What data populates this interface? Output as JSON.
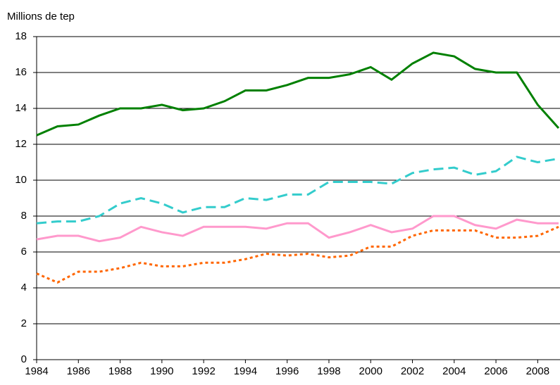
{
  "chart_data": {
    "type": "line",
    "ylabel": "Millions de tep",
    "x": [
      1984,
      1985,
      1986,
      1987,
      1988,
      1989,
      1990,
      1991,
      1992,
      1993,
      1994,
      1995,
      1996,
      1997,
      1998,
      1999,
      2000,
      2001,
      2002,
      2003,
      2004,
      2005,
      2006,
      2007,
      2008,
      2009
    ],
    "series": [
      {
        "color": "#008000",
        "dash": "solid",
        "values": [
          12.5,
          13.0,
          13.1,
          13.6,
          14.0,
          14.0,
          14.2,
          13.9,
          14.0,
          14.4,
          15.0,
          15.0,
          15.3,
          15.7,
          15.7,
          15.9,
          16.3,
          15.6,
          16.5,
          17.1,
          16.9,
          16.2,
          16.0,
          16.0,
          14.2,
          12.9
        ]
      },
      {
        "color": "#33cccc",
        "dash": "dashed",
        "values": [
          7.6,
          7.7,
          7.7,
          8.0,
          8.7,
          9.0,
          8.7,
          8.2,
          8.5,
          8.5,
          9.0,
          8.9,
          9.2,
          9.2,
          9.9,
          9.9,
          9.9,
          9.8,
          10.4,
          10.6,
          10.7,
          10.3,
          10.5,
          11.3,
          11.0,
          11.2
        ]
      },
      {
        "color": "#ff99cc",
        "dash": "solid",
        "values": [
          6.7,
          6.9,
          6.9,
          6.6,
          6.8,
          7.4,
          7.1,
          6.9,
          7.4,
          7.4,
          7.4,
          7.3,
          7.6,
          7.6,
          6.8,
          7.1,
          7.5,
          7.1,
          7.3,
          8.0,
          8.0,
          7.5,
          7.3,
          7.8,
          7.6,
          7.6
        ]
      },
      {
        "color": "#ff6600",
        "dash": "dotted",
        "values": [
          4.8,
          4.3,
          4.9,
          4.9,
          5.1,
          5.4,
          5.2,
          5.2,
          5.4,
          5.4,
          5.6,
          5.9,
          5.8,
          5.9,
          5.7,
          5.8,
          6.3,
          6.3,
          6.9,
          7.2,
          7.2,
          7.2,
          6.8,
          6.8,
          6.9,
          7.4
        ]
      }
    ],
    "xlim": [
      1984,
      2009
    ],
    "xticks": [
      1984,
      1986,
      1988,
      1990,
      1992,
      1994,
      1996,
      1998,
      2000,
      2002,
      2004,
      2006,
      2008
    ],
    "ylim": [
      0,
      18
    ],
    "yticks": [
      0,
      2,
      4,
      6,
      8,
      10,
      12,
      14,
      16,
      18
    ],
    "grid": true
  }
}
